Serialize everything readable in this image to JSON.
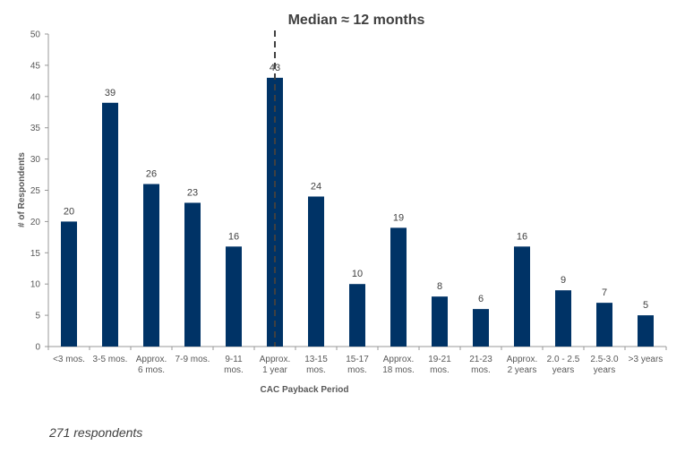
{
  "chart_data": {
    "type": "bar",
    "annotation": "Median ≈ 12 months",
    "median_category_index": 5,
    "xlabel": "CAC Payback Period",
    "ylabel": "# of Respondents",
    "ylim": [
      0,
      50
    ],
    "yticks": [
      0,
      5,
      10,
      15,
      20,
      25,
      30,
      35,
      40,
      45,
      50
    ],
    "grid": false,
    "bar_color": "#003366",
    "categories": [
      [
        "<3 mos."
      ],
      [
        "3-5 mos."
      ],
      [
        "Approx.",
        "6 mos."
      ],
      [
        "7-9 mos."
      ],
      [
        "9-11",
        "mos."
      ],
      [
        "Approx.",
        "1 year"
      ],
      [
        "13-15",
        "mos."
      ],
      [
        "15-17",
        "mos."
      ],
      [
        "Approx.",
        "18 mos."
      ],
      [
        "19-21",
        "mos."
      ],
      [
        "21-23",
        "mos."
      ],
      [
        "Approx.",
        "2 years"
      ],
      [
        "2.0 - 2.5",
        "years"
      ],
      [
        "2.5-3.0",
        "years"
      ],
      [
        ">3 years"
      ]
    ],
    "values": [
      20,
      39,
      26,
      23,
      16,
      43,
      24,
      10,
      19,
      8,
      6,
      16,
      9,
      7,
      5
    ]
  },
  "footnote": "271 respondents"
}
